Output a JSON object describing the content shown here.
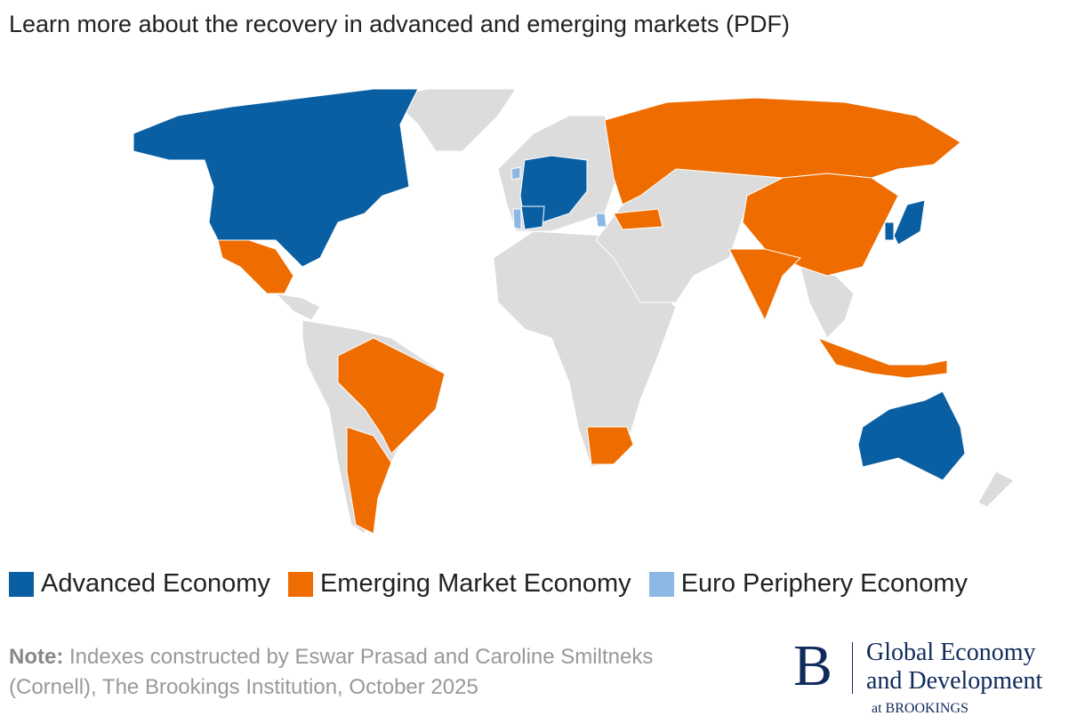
{
  "header": {
    "title": "Learn more about the recovery in advanced and emerging markets (PDF)"
  },
  "legend": [
    {
      "label": "Advanced Economy",
      "color": "#0a5fa3"
    },
    {
      "label": "Emerging Market Economy",
      "color": "#ef6c00"
    },
    {
      "label": "Euro Periphery Economy",
      "color": "#8db8e6"
    }
  ],
  "map": {
    "other_color": "#dcdcdc"
  },
  "note": {
    "label": "Note:",
    "text": "Indexes constructed by Eswar Prasad and Caroline Smiltneks (Cornell), The Brookings Institution, October 2025"
  },
  "logo": {
    "letter": "B",
    "line1": "Global Economy",
    "line2": "and Development",
    "line3": "at BROOKINGS"
  }
}
